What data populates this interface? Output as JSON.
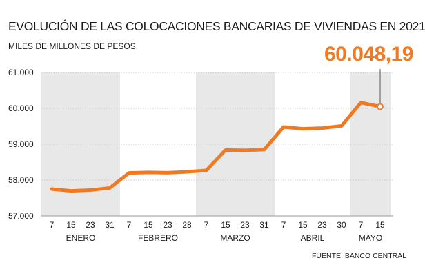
{
  "chart_data": {
    "type": "line",
    "title": "EVOLUCIÓN DE LAS COLOCACIONES BANCARIAS DE VIVIENDAS EN 2021",
    "subtitle": "MILES DE MILLONES DE PESOS",
    "source": "FUENTE: BANCO CENTRAL",
    "callout_value": "60.048,19",
    "line_color": "#f07a22",
    "band_color": "#e8e8e8",
    "ylim": [
      57000,
      61000
    ],
    "yticks": [
      57000,
      58000,
      59000,
      60000,
      61000
    ],
    "ytick_labels": [
      "57.000",
      "58.000",
      "59.000",
      "60.000",
      "61.000"
    ],
    "grid": true,
    "x": [
      "7",
      "15",
      "23",
      "31",
      "7",
      "15",
      "23",
      "28",
      "7",
      "15",
      "23",
      "31",
      "7",
      "15",
      "23",
      "30",
      "7",
      "15"
    ],
    "values": [
      57750,
      57700,
      57720,
      57780,
      58200,
      58215,
      58205,
      58230,
      58270,
      58840,
      58830,
      58850,
      59480,
      59430,
      59450,
      59510,
      60160,
      60048.19
    ],
    "months": [
      {
        "label": "ENERO",
        "start": 0,
        "end": 3,
        "shaded": true
      },
      {
        "label": "FEBRERO",
        "start": 4,
        "end": 7,
        "shaded": false
      },
      {
        "label": "MARZO",
        "start": 8,
        "end": 11,
        "shaded": true
      },
      {
        "label": "ABRIL",
        "start": 12,
        "end": 15,
        "shaded": false
      },
      {
        "label": "MAYO",
        "start": 16,
        "end": 17,
        "shaded": true
      }
    ]
  }
}
